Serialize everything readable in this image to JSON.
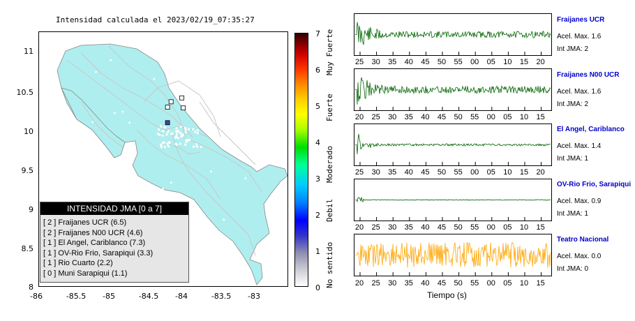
{
  "map": {
    "title": "Intensidad calculada el 2023/02/19_07:35:27",
    "lat_ticks": [
      "11",
      "10.5",
      "10",
      "9.5",
      "9",
      "8.5",
      "8"
    ],
    "lon_ticks": [
      "-86",
      "-85.5",
      "-85",
      "-84.5",
      "-84",
      "-83.5",
      "-83"
    ],
    "land_color": "#afeeee",
    "station_markers": [
      {
        "lon": -84.0,
        "lat": 10.45,
        "color": "#ffffff"
      },
      {
        "lon": -84.15,
        "lat": 10.4,
        "color": "#ffffff"
      },
      {
        "lon": -84.2,
        "lat": 10.33,
        "color": "#ffffff"
      },
      {
        "lon": -83.98,
        "lat": 10.32,
        "color": "#ffffff"
      },
      {
        "lon": -84.2,
        "lat": 10.13,
        "color": "#4444aa"
      }
    ]
  },
  "legend": {
    "title": "INTENSIDAD JMA [0 a 7]",
    "items": [
      "[ 2 ]  Fraijanes UCR (6.5)",
      "[ 2 ]  Fraijanes N00 UCR (4.6)",
      "[ 1 ]  El Angel, Cariblanco (7.3)",
      "[ 1 ]  OV-Rio Frio, Sarapiqui (3.3)",
      "[ 1 ]  Rio Cuarto (2.2)",
      "[ 0 ]  Muni Sarapiqui (1.1)"
    ]
  },
  "colorbar": {
    "ticks": [
      "7",
      "6",
      "5",
      "4",
      "3",
      "2",
      "1",
      "0"
    ],
    "labels": [
      {
        "text": "Muy Fuerte",
        "value": 6.5
      },
      {
        "text": "Fuerte",
        "value": 5.0
      },
      {
        "text": "Moderado",
        "value": 3.5
      },
      {
        "text": "Debil",
        "value": 1.9
      },
      {
        "text": "No sentido",
        "value": 0.5
      }
    ]
  },
  "traces": [
    {
      "name": "Fraijanes UCR",
      "accel": "Acel. Max. 1.6",
      "jma": "Int JMA: 2",
      "color": "#006400",
      "ticks": [
        "25",
        "30",
        "35",
        "40",
        "45",
        "50",
        "55",
        "00",
        "05",
        "10",
        "15",
        "20"
      ],
      "decay": 0.006,
      "noise": 0.18,
      "seed": 11
    },
    {
      "name": "Fraijanes N00 UCR",
      "accel": "Acel. Max. 1.6",
      "jma": "Int JMA: 2",
      "color": "#006400",
      "ticks": [
        "20",
        "25",
        "30",
        "35",
        "40",
        "45",
        "50",
        "55",
        "00",
        "05",
        "10",
        "15"
      ],
      "decay": 0.006,
      "noise": 0.2,
      "seed": 29
    },
    {
      "name": "El Angel, Cariblanco",
      "accel": "Acel. Max. 1.4",
      "jma": "Int JMA: 1",
      "color": "#006400",
      "ticks": [
        "25",
        "30",
        "35",
        "40",
        "45",
        "50",
        "55",
        "00",
        "05",
        "10",
        "15",
        "20"
      ],
      "decay": 0.012,
      "noise": 0.06,
      "seed": 47
    },
    {
      "name": "OV-Rio Frio, Sarapiqui",
      "accel": "Acel. Max. 0.9",
      "jma": "Int JMA: 1",
      "color": "#006400",
      "ticks": [
        "20",
        "25",
        "30",
        "35",
        "40",
        "45",
        "50",
        "55",
        "00",
        "05",
        "10",
        "15"
      ],
      "decay": 0.03,
      "noise": 0.02,
      "seed": 83
    },
    {
      "name": "Teatro Nacional",
      "accel": "Acel. Max. 0.0",
      "jma": "Int JMA: 0",
      "color": "#ffa500",
      "ticks": [
        "20",
        "25",
        "30",
        "35",
        "40",
        "45",
        "50",
        "55",
        "00",
        "05",
        "10",
        "15"
      ],
      "decay": 0.0,
      "noise": 0.7,
      "seed": 101
    }
  ],
  "time_axis_label": "Tiempo (s)"
}
